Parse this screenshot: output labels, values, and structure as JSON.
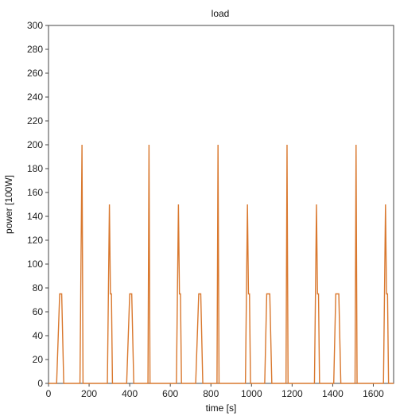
{
  "chart_data": {
    "type": "line",
    "title": "load",
    "xlabel": "time [s]",
    "ylabel": "power [100W]",
    "xlim": [
      0,
      1700
    ],
    "ylim": [
      0,
      300
    ],
    "x_ticks": [
      0,
      200,
      400,
      600,
      800,
      1000,
      1200,
      1400,
      1600
    ],
    "y_ticks": [
      0,
      20,
      40,
      60,
      80,
      100,
      120,
      140,
      160,
      180,
      200,
      220,
      240,
      260,
      280,
      300
    ],
    "grid": false,
    "line_color": "#d9782e",
    "series": [
      {
        "x": [
          0,
          40,
          55,
          65,
          75,
          155,
          165,
          170,
          290,
          300,
          305,
          310,
          315,
          385,
          400,
          410,
          420,
          490,
          495,
          500,
          630,
          640,
          645,
          650,
          655,
          725,
          740,
          750,
          760,
          830,
          835,
          840,
          970,
          980,
          985,
          990,
          995,
          1065,
          1075,
          1090,
          1100,
          1170,
          1175,
          1180,
          1310,
          1320,
          1325,
          1330,
          1335,
          1405,
          1415,
          1430,
          1440,
          1510,
          1515,
          1520,
          1650,
          1660,
          1665,
          1670,
          1675,
          1700
        ],
        "y": [
          0,
          0,
          75,
          75,
          0,
          0,
          200,
          0,
          0,
          150,
          75,
          75,
          0,
          0,
          75,
          75,
          0,
          0,
          200,
          0,
          0,
          150,
          75,
          75,
          0,
          0,
          75,
          75,
          0,
          0,
          200,
          0,
          0,
          150,
          75,
          75,
          0,
          0,
          75,
          75,
          0,
          0,
          200,
          0,
          0,
          150,
          75,
          75,
          0,
          0,
          75,
          75,
          0,
          0,
          200,
          0,
          0,
          150,
          75,
          75,
          0,
          0
        ]
      }
    ]
  }
}
